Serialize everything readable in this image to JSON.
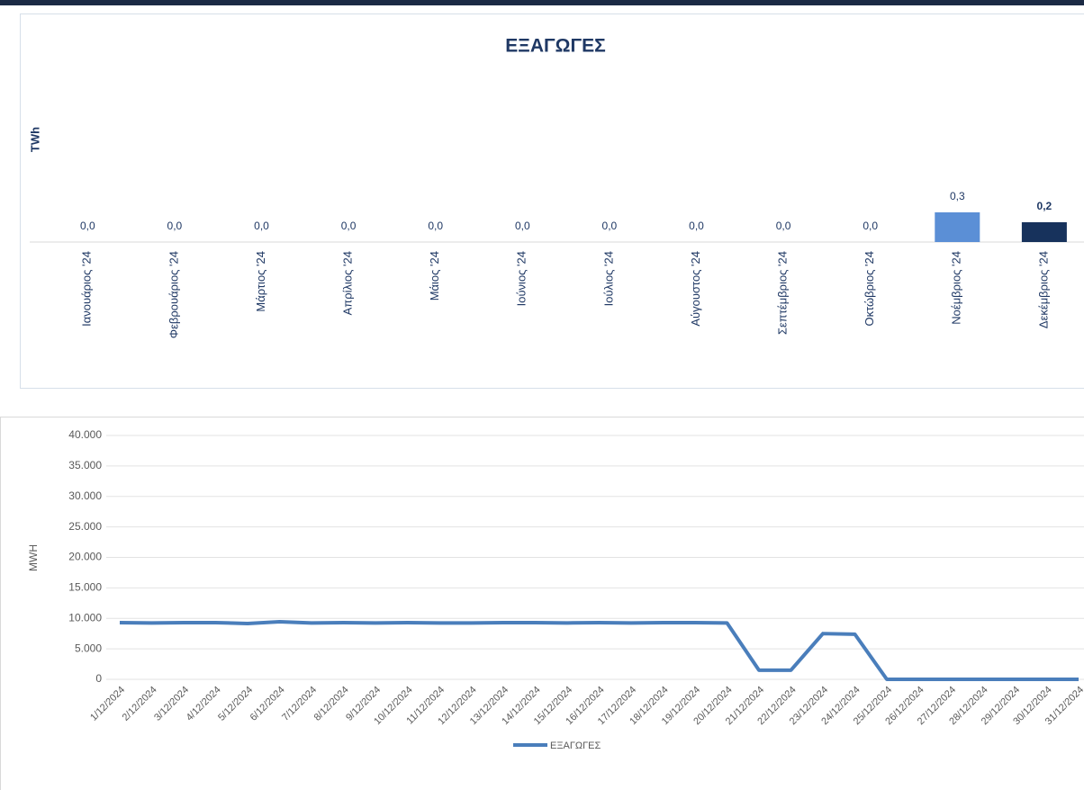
{
  "chart_data": [
    {
      "type": "bar",
      "title": "ΕΞΑΓΩΓΕΣ",
      "y_label": "TWh",
      "categories": [
        "Ιανουάριος '24",
        "Φεβρουάριος '24",
        "Μάρτιος '24",
        "Απρίλιος '24",
        "Μάιος '24",
        "Ιούνιος '24",
        "Ιούλιος '24",
        "Αύγουστος '24",
        "Σεπτέμβριος '24",
        "Οκτώβριος '24",
        "Νοέμβριος '24",
        "Δεκέμβριος '24"
      ],
      "values": [
        0,
        0,
        0,
        0,
        0,
        0,
        0,
        0,
        0,
        0,
        0.3,
        0.2
      ],
      "value_labels": [
        "0,0",
        "0,0",
        "0,0",
        "0,0",
        "0,0",
        "0,0",
        "0,0",
        "0,0",
        "0,0",
        "0,0",
        "0,3",
        "0,2"
      ],
      "colors": [
        "#5b8fd6",
        "#5b8fd6",
        "#5b8fd6",
        "#5b8fd6",
        "#5b8fd6",
        "#5b8fd6",
        "#5b8fd6",
        "#5b8fd6",
        "#5b8fd6",
        "#5b8fd6",
        "#5b8fd6",
        "#17325c"
      ]
    },
    {
      "type": "line",
      "y_label": "MWH",
      "categories": [
        "1/12/2024",
        "2/12/2024",
        "3/12/2024",
        "4/12/2024",
        "5/12/2024",
        "6/12/2024",
        "7/12/2024",
        "8/12/2024",
        "9/12/2024",
        "10/12/2024",
        "11/12/2024",
        "12/12/2024",
        "13/12/2024",
        "14/12/2024",
        "15/12/2024",
        "16/12/2024",
        "17/12/2024",
        "18/12/2024",
        "19/12/2024",
        "20/12/2024",
        "21/12/2024",
        "22/12/2024",
        "23/12/2024",
        "24/12/2024",
        "25/12/2024",
        "26/12/2024",
        "27/12/2024",
        "28/12/2024",
        "29/12/2024",
        "30/12/2024",
        "31/12/2024"
      ],
      "series": [
        {
          "name": "ΕΞΑΓΩΓΕΣ",
          "color": "#4a7ebb",
          "values": [
            9300,
            9250,
            9300,
            9300,
            9150,
            9450,
            9250,
            9300,
            9250,
            9300,
            9250,
            9250,
            9300,
            9300,
            9250,
            9300,
            9250,
            9300,
            9300,
            9250,
            1500,
            1500,
            7500,
            7400,
            0,
            0,
            0,
            0,
            0,
            0,
            0
          ]
        }
      ],
      "ylim": [
        0,
        40000
      ],
      "yticks": [
        0,
        {
          "value": 5000,
          "label": "5.000"
        },
        {
          "value": 10000,
          "label": "10.000"
        },
        {
          "value": 15000,
          "label": "15.000"
        },
        {
          "value": 20000,
          "label": "20.000"
        },
        {
          "value": 25000,
          "label": "25.000"
        },
        {
          "value": 30000,
          "label": "30.000"
        },
        {
          "value": 35000,
          "label": "35.000"
        },
        {
          "value": 40000,
          "label": "40.000"
        }
      ],
      "grid": true,
      "legend": "bottom"
    }
  ]
}
